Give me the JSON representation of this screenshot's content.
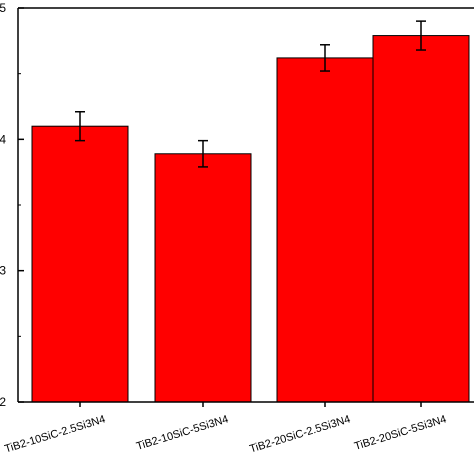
{
  "chart_data": {
    "type": "bar",
    "categories": [
      "TiB2-10SiC-2.5Si3N4",
      "TiB2-10SiC-5Si3N4",
      "TiB2-20SiC-2.5Si3N4",
      "TiB2-20SiC-5Si3N4"
    ],
    "values": [
      4.1,
      3.89,
      4.62,
      4.79
    ],
    "errors": [
      0.11,
      0.1,
      0.1,
      0.11
    ],
    "ylim": [
      2,
      5
    ],
    "yticks": [
      "2",
      "3",
      "4",
      "5"
    ],
    "bar_color": "#ff0000",
    "grid": false,
    "title": "",
    "xlabel": "",
    "ylabel": ""
  }
}
